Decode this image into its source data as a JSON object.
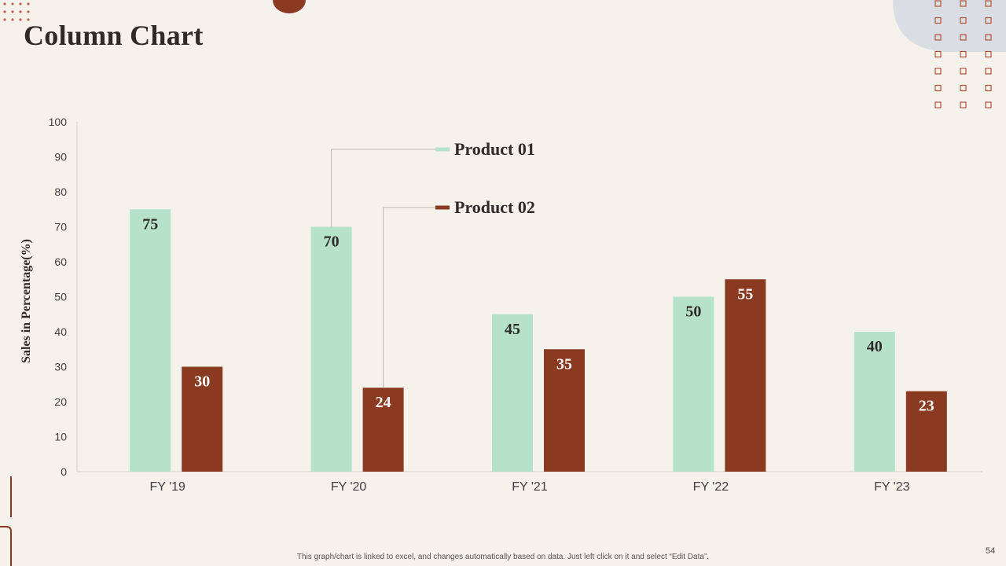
{
  "slide": {
    "title": "Column Chart",
    "footnote": "This graph/chart is linked to excel, and changes automatically based on data. Just left click on it and select “Edit Data”.",
    "page_number": "54"
  },
  "colors": {
    "background": "#f5f1eb",
    "product_01": "#b6e2c9",
    "product_02": "#8b3a22",
    "accent_blob": "#d9dee4",
    "accent_brown": "#8b3a22"
  },
  "chart_data": {
    "type": "bar",
    "title": "",
    "xlabel": "",
    "ylabel": "Sales in Percentage(%)",
    "ylim": [
      0,
      100
    ],
    "yticks": [
      "0",
      "10",
      "20",
      "30",
      "40",
      "50",
      "60",
      "70",
      "80",
      "90",
      "100"
    ],
    "categories": [
      "FY '19",
      "FY '20",
      "FY '21",
      "FY '22",
      "FY '23"
    ],
    "grid": false,
    "legend": "callout, top-center",
    "data_labels": true,
    "series": [
      {
        "name": "Product 01",
        "values": [
          75,
          70,
          45,
          50,
          40
        ]
      },
      {
        "name": "Product 02",
        "values": [
          30,
          24,
          35,
          55,
          23
        ]
      }
    ]
  }
}
